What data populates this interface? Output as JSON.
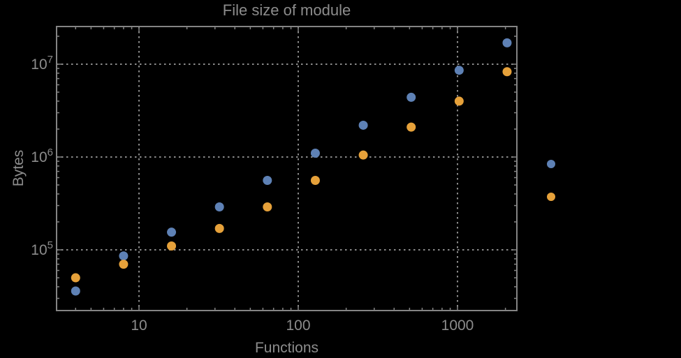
{
  "chart": {
    "title": "File size of module",
    "xlabel": "Functions",
    "ylabel": "Bytes"
  },
  "colors": {
    "background": "#000000",
    "frame": "#848484",
    "grid": "#8A8A8A",
    "text": "#8C8C8C",
    "series1": "#5E81B5",
    "series2": "#E6A13A"
  },
  "chart_data": {
    "type": "scatter",
    "title": "File size of module",
    "xlabel": "Functions",
    "ylabel": "Bytes",
    "x_scale": "log",
    "y_scale": "log",
    "grid": true,
    "xlim": [
      3.04,
      2360
    ],
    "ylim": [
      22200,
      24600000
    ],
    "x": [
      4,
      8,
      16,
      32,
      64,
      128,
      256,
      512,
      1024,
      2048
    ],
    "series": [
      {
        "name": "blue-series",
        "color": "#5E81B5",
        "values": [
          36000,
          86000,
          155000,
          290000,
          560000,
          1100000,
          2200000,
          4400000,
          8600000,
          17000000
        ]
      },
      {
        "name": "orange-series",
        "color": "#E6A13A",
        "values": [
          50000,
          70000,
          110000,
          170000,
          290000,
          560000,
          1050000,
          2100000,
          4000000,
          8300000
        ]
      }
    ],
    "x_ticks": [
      {
        "label": "10",
        "value": 10
      },
      {
        "label": "100",
        "value": 100
      },
      {
        "label": "1000",
        "value": 1000
      }
    ],
    "y_ticks": [
      {
        "mantissa": "10",
        "exponent": "5",
        "value": 100000
      },
      {
        "mantissa": "10",
        "exponent": "6",
        "value": 1000000
      },
      {
        "mantissa": "10",
        "exponent": "7",
        "value": 10000000
      }
    ],
    "legend_position": "right-outside",
    "legend_markers": [
      {
        "name": "legend-marker-blue",
        "color": "#5E81B5"
      },
      {
        "name": "legend-marker-orange",
        "color": "#E6A13A"
      }
    ]
  }
}
